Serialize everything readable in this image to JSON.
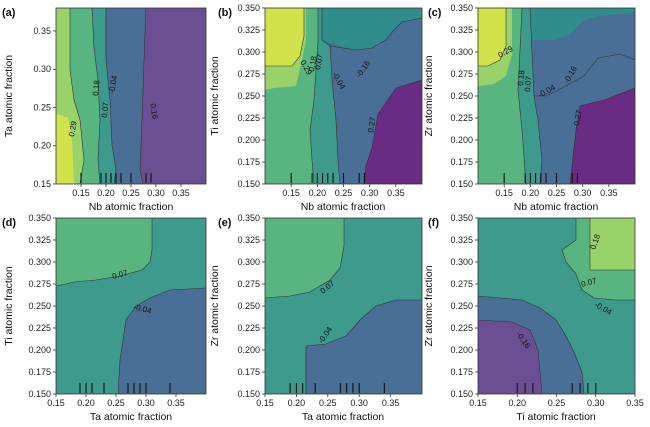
{
  "colors": {
    "level_hi": "#d2e24a",
    "level_mid_hi": "#9ad26a",
    "level_mid": "#58b57f",
    "level_mid_lo": "#3d9a8c",
    "level_lo": "#4a6f96",
    "level_vlo": "#6c4f92",
    "level_min": "#6a2c82",
    "teal": "#2f8e8c"
  },
  "chart_data": [
    {
      "type": "heatmap",
      "panel": "(a)",
      "xlabel": "Nb atomic fraction",
      "ylabel": "Ta atomic fraction",
      "xlim": [
        0.1,
        0.4
      ],
      "ylim": [
        0.15,
        0.38
      ],
      "xticks": [
        "0.15",
        "0.20",
        "0.25",
        "0.30",
        "0.35"
      ],
      "yticks": [
        "0.15",
        "0.20",
        "0.25",
        "0.30",
        "0.35"
      ],
      "contour_labels": [
        "0.29",
        "0.18",
        "0.07",
        "-0.04",
        "0.16"
      ],
      "rug": [
        0.15,
        0.19,
        0.2,
        0.21,
        0.22,
        0.23,
        0.25,
        0.28,
        0.29
      ]
    },
    {
      "type": "heatmap",
      "panel": "(b)",
      "xlabel": "Nb atomic fraction",
      "ylabel": "Ti atomic fraction",
      "xlim": [
        0.1,
        0.4
      ],
      "ylim": [
        0.15,
        0.35
      ],
      "xticks": [
        "0.15",
        "0.20",
        "0.25",
        "0.30",
        "0.35"
      ],
      "yticks": [
        "0.150",
        "0.175",
        "0.200",
        "0.225",
        "0.250",
        "0.275",
        "0.300",
        "0.325",
        "0.350"
      ],
      "contour_labels": [
        "0.29",
        "0.18",
        "0.07",
        "-0.04",
        "-0.16",
        "0.27"
      ],
      "rug": [
        0.15,
        0.19,
        0.2,
        0.21,
        0.22,
        0.23,
        0.25,
        0.28,
        0.29
      ]
    },
    {
      "type": "heatmap",
      "panel": "(c)",
      "xlabel": "Nb atomic fraction",
      "ylabel": "Zr atomic fraction",
      "xlim": [
        0.1,
        0.4
      ],
      "ylim": [
        0.15,
        0.35
      ],
      "xticks": [
        "0.15",
        "0.20",
        "0.25",
        "0.30",
        "0.35"
      ],
      "yticks": [
        "0.150",
        "0.175",
        "0.200",
        "0.225",
        "0.250",
        "0.275",
        "0.300",
        "0.325",
        "0.350"
      ],
      "contour_labels": [
        "0.29",
        "0.18",
        "0.07",
        "-0.04",
        "-0.16",
        "0.27"
      ],
      "rug": [
        0.15,
        0.19,
        0.2,
        0.21,
        0.22,
        0.23,
        0.25,
        0.28,
        0.29
      ]
    },
    {
      "type": "heatmap",
      "panel": "(d)",
      "xlabel": "Ta atomic fraction",
      "ylabel": "Ti atomic fraction",
      "xlim": [
        0.15,
        0.4
      ],
      "ylim": [
        0.15,
        0.35
      ],
      "xticks": [
        "0.15",
        "0.20",
        "0.25",
        "0.30",
        "0.35"
      ],
      "yticks": [
        "0.150",
        "0.175",
        "0.200",
        "0.225",
        "0.250",
        "0.275",
        "0.300",
        "0.325",
        "0.350"
      ],
      "contour_labels": [
        "0.07",
        "-0.04"
      ],
      "rug": [
        0.19,
        0.2,
        0.21,
        0.23,
        0.27,
        0.28,
        0.29,
        0.3,
        0.34
      ]
    },
    {
      "type": "heatmap",
      "panel": "(e)",
      "xlabel": "Ta atomic fraction",
      "ylabel": "Zr atomic fraction",
      "xlim": [
        0.15,
        0.4
      ],
      "ylim": [
        0.15,
        0.35
      ],
      "xticks": [
        "0.15",
        "0.20",
        "0.25",
        "0.30",
        "0.35"
      ],
      "yticks": [
        "0.150",
        "0.175",
        "0.200",
        "0.225",
        "0.250",
        "0.275",
        "0.300",
        "0.325",
        "0.350"
      ],
      "contour_labels": [
        "0.07",
        "-0.04"
      ],
      "rug": [
        0.19,
        0.2,
        0.21,
        0.23,
        0.27,
        0.28,
        0.29,
        0.3,
        0.34
      ]
    },
    {
      "type": "heatmap",
      "panel": "(f)",
      "xlabel": "Ti atomic fraction",
      "ylabel": "Zr atomic fraction",
      "xlim": [
        0.15,
        0.35
      ],
      "ylim": [
        0.15,
        0.35
      ],
      "xticks": [
        "0.15",
        "0.20",
        "0.25",
        "0.30",
        "0.35"
      ],
      "yticks": [
        "0.150",
        "0.175",
        "0.200",
        "0.225",
        "0.250",
        "0.275",
        "0.300",
        "0.325",
        "0.350"
      ],
      "contour_labels": [
        "0.18",
        "0.07",
        "-0.04",
        "-0.16"
      ],
      "rug": [
        0.2,
        0.21,
        0.22,
        0.27,
        0.28,
        0.29,
        0.3
      ]
    }
  ]
}
